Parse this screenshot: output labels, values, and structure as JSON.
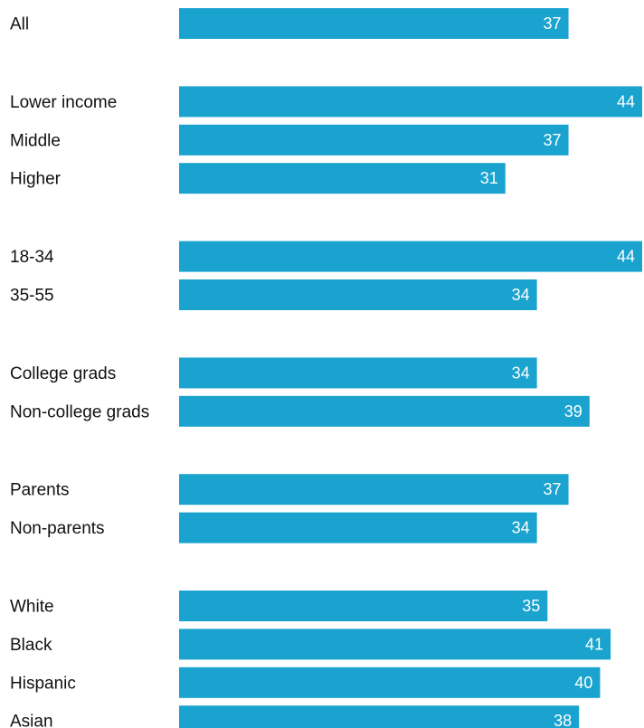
{
  "chart_data": {
    "type": "bar",
    "orientation": "horizontal",
    "categories": [
      "All",
      "Lower income",
      "Middle",
      "Higher",
      "18-34",
      "35-55",
      "College grads",
      "Non-college grads",
      "Parents",
      "Non-parents",
      "White",
      "Black",
      "Hispanic",
      "Asian"
    ],
    "values": [
      37,
      44,
      37,
      31,
      44,
      34,
      34,
      39,
      37,
      34,
      35,
      41,
      40,
      38
    ],
    "value_labels": [
      "37",
      "44",
      "37",
      "31",
      "44",
      "34",
      "34",
      "39",
      "37",
      "34",
      "35",
      "41",
      "40",
      "38"
    ],
    "groups": [
      [
        "All"
      ],
      [
        "Lower income",
        "Middle",
        "Higher"
      ],
      [
        "18-34",
        "35-55"
      ],
      [
        "College grads",
        "Non-college grads"
      ],
      [
        "Parents",
        "Non-parents"
      ],
      [
        "White",
        "Black",
        "Hispanic",
        "Asian"
      ]
    ],
    "xlim": [
      0,
      44
    ],
    "bar_color": "#1aa3cf",
    "label_color": "#ffffff",
    "grid": false,
    "legend": "none"
  }
}
